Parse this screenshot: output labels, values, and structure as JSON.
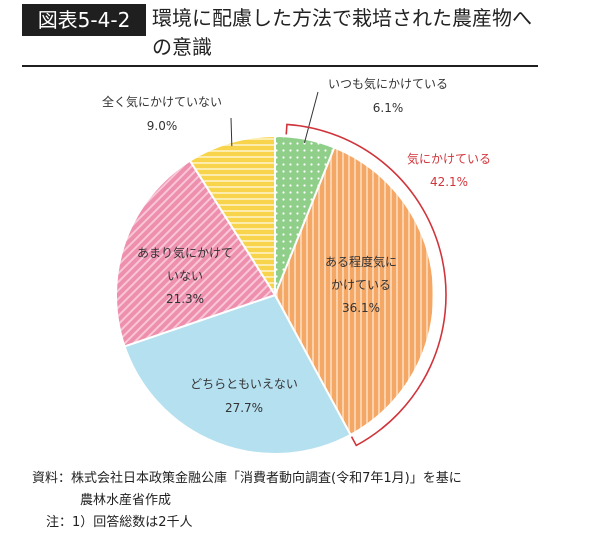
{
  "header": {
    "figure_number": "図表5-4-2",
    "title": "環境に配慮した方法で栽培された農産物への意識"
  },
  "chart_data": {
    "type": "pie",
    "title": "環境に配慮した方法で栽培された農産物への意識",
    "slices": [
      {
        "label": "いつも気にかけている",
        "value": 6.1,
        "value_label": "6.1%",
        "color": "#8fcf8a"
      },
      {
        "label": "ある程度気にかけている",
        "value": 36.1,
        "value_label": "36.1%",
        "color": "#f5a766"
      },
      {
        "label": "どちらともいえない",
        "value": 27.7,
        "value_label": "27.7%",
        "color": "#b5e0f0"
      },
      {
        "label": "あまり気にかけていない",
        "value": 21.3,
        "value_label": "21.3%",
        "color": "#ee8fae"
      },
      {
        "label": "全く気にかけていない",
        "value": 9.0,
        "value_label": "9.0%",
        "color": "#f7d44c"
      }
    ],
    "group_annotation": {
      "label": "気にかけている",
      "value_label": "42.1%",
      "color": "#d0353b"
    },
    "start": "top",
    "direction": "clockwise",
    "legend": "none"
  },
  "labels": {
    "s0_line1": "いつも気にかけている",
    "s0_line2": "6.1%",
    "s1_line1": "ある程度気に",
    "s1_line2": "かけている",
    "s1_line3": "36.1%",
    "s2_line1": "どちらともいえない",
    "s2_line2": "27.7%",
    "s3_line1": "あまり気にかけて",
    "s3_line2": "いない",
    "s3_line3": "21.3%",
    "s4_line1": "全く気にかけていない",
    "s4_line2": "9.0%"
  },
  "notes": {
    "source_prefix": "資料：",
    "source_line1": "株式会社日本政策金融公庫「消費者動向調査(令和7年1月)」を基に",
    "source_line2": "農林水産省作成",
    "note_line": "注：1）回答総数は2千人"
  }
}
